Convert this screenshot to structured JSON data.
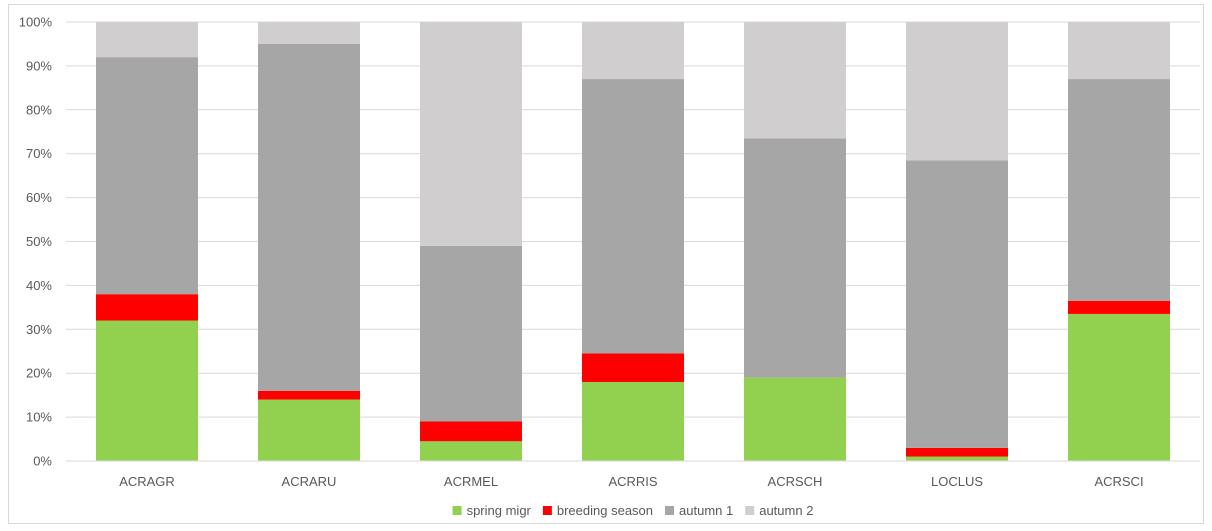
{
  "chart_data": {
    "type": "bar",
    "stacked": true,
    "percent": true,
    "categories": [
      "ACRAGR",
      "ACRARU",
      "ACRMEL",
      "ACRRIS",
      "ACRSCH",
      "LOCLUS",
      "ACRSCI"
    ],
    "y_ticks": [
      "0%",
      "10%",
      "20%",
      "30%",
      "40%",
      "50%",
      "60%",
      "70%",
      "80%",
      "90%",
      "100%"
    ],
    "ylim": [
      0,
      100
    ],
    "grid": true,
    "legend_position": "bottom",
    "series": [
      {
        "name": "spring migr",
        "color": "#92d050",
        "values": [
          32,
          14,
          4.5,
          18,
          19,
          1,
          33.5
        ]
      },
      {
        "name": "breeding season",
        "color": "#ff0000",
        "values": [
          6,
          2,
          4.5,
          6.5,
          0,
          2,
          3
        ]
      },
      {
        "name": "autumn 1",
        "color": "#a6a6a6",
        "values": [
          54,
          79,
          40,
          62.5,
          54.5,
          65.5,
          50.5
        ]
      },
      {
        "name": "autumn 2",
        "color": "#d0cece",
        "values": [
          8,
          5,
          51,
          13,
          26.5,
          31.5,
          13
        ]
      }
    ]
  }
}
